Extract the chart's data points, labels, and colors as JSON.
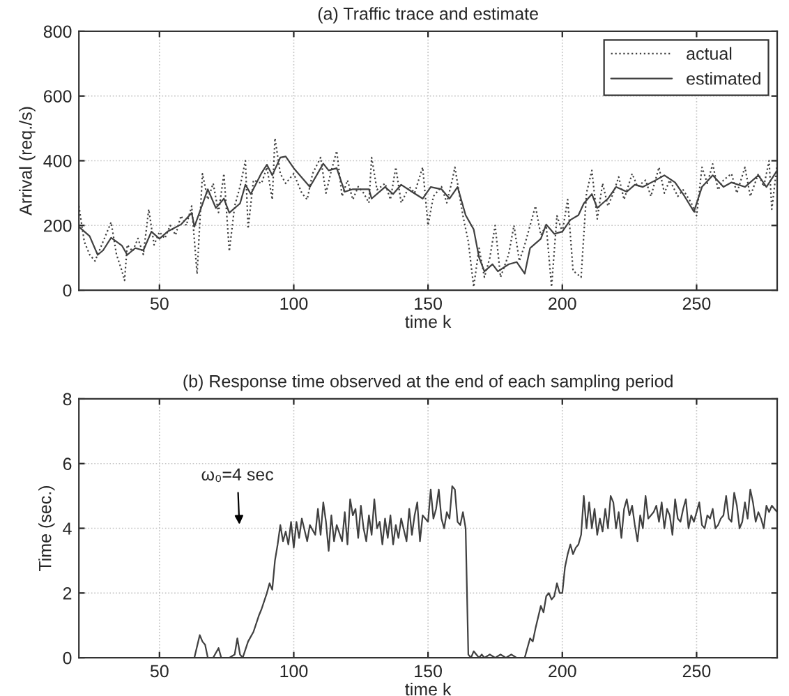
{
  "chart_data": [
    {
      "type": "line",
      "title": "(a) Traffic trace and estimate",
      "xlabel": "time k",
      "ylabel": "Arrival (req./s)",
      "xlim": [
        20,
        280
      ],
      "xticks": [
        50,
        100,
        150,
        200,
        250
      ],
      "ylim": [
        0,
        800
      ],
      "yticks": [
        0,
        200,
        400,
        600,
        800
      ],
      "grid": true,
      "legend": "top right",
      "series": [
        {
          "name": "actual",
          "color": "#404040",
          "line_style": "dotted",
          "x": [
            20,
            22,
            24,
            26,
            28,
            30,
            32,
            34,
            36,
            37,
            38,
            40,
            42,
            44,
            46,
            48,
            50,
            52,
            54,
            56,
            58,
            60,
            62,
            64,
            66,
            68,
            70,
            72,
            74,
            76,
            78,
            80,
            82,
            83,
            85,
            88,
            90,
            92,
            93,
            95,
            97,
            100,
            103,
            105,
            107,
            110,
            112,
            114,
            116,
            118,
            120,
            122,
            124,
            126,
            128,
            129,
            131,
            134,
            136,
            138,
            140,
            143,
            145,
            148,
            150,
            152,
            155,
            157,
            159,
            160,
            163,
            165,
            167,
            169,
            171,
            173,
            175,
            177,
            180,
            182,
            184,
            186,
            188,
            190,
            192,
            194,
            196,
            198,
            200,
            202,
            204,
            207,
            209,
            211,
            213,
            215,
            217,
            219,
            221,
            223,
            226,
            228,
            231,
            233,
            236,
            238,
            240,
            243,
            245,
            248,
            250,
            252,
            254,
            256,
            258,
            260,
            263,
            265,
            268,
            270,
            273,
            275,
            277,
            278,
            280
          ],
          "values": [
            260,
            150,
            110,
            90,
            130,
            170,
            210,
            110,
            60,
            30,
            140,
            120,
            160,
            110,
            250,
            140,
            180,
            160,
            200,
            170,
            230,
            200,
            260,
            50,
            360,
            280,
            330,
            240,
            360,
            120,
            260,
            320,
            400,
            190,
            340,
            330,
            380,
            280,
            470,
            360,
            330,
            360,
            300,
            280,
            360,
            410,
            300,
            370,
            430,
            290,
            340,
            280,
            320,
            300,
            270,
            410,
            310,
            330,
            280,
            380,
            270,
            320,
            300,
            380,
            200,
            290,
            320,
            270,
            340,
            380,
            230,
            150,
            10,
            130,
            40,
            100,
            200,
            40,
            110,
            200,
            90,
            140,
            200,
            260,
            170,
            200,
            10,
            230,
            180,
            280,
            60,
            40,
            300,
            370,
            220,
            330,
            260,
            300,
            350,
            280,
            360,
            320,
            340,
            290,
            380,
            300,
            340,
            290,
            310,
            270,
            230,
            380,
            330,
            390,
            310,
            340,
            360,
            300,
            380,
            290,
            360,
            320,
            400,
            250,
            390
          ]
        },
        {
          "name": "estimated",
          "color": "#404040",
          "line_style": "solid",
          "x": [
            20,
            24,
            27,
            29,
            32,
            36,
            38,
            41,
            44,
            47,
            50,
            53,
            58,
            62,
            63,
            68,
            71,
            74,
            76,
            80,
            82,
            84,
            88,
            90,
            92,
            95,
            97,
            100,
            106,
            111,
            113,
            116,
            119,
            122,
            128,
            129,
            134,
            137,
            140,
            144,
            148,
            151,
            155,
            158,
            161,
            164,
            167,
            169,
            171,
            174,
            176,
            180,
            183,
            186,
            188,
            192,
            194,
            197,
            200,
            203,
            206,
            208,
            211,
            213,
            217,
            220,
            224,
            227,
            230,
            235,
            238,
            242,
            245,
            249,
            252,
            256,
            260,
            263,
            268,
            273,
            276,
            280
          ],
          "values": [
            196,
            167,
            109,
            123,
            162,
            138,
            109,
            130,
            123,
            181,
            159,
            181,
            203,
            239,
            196,
            312,
            254,
            283,
            239,
            268,
            326,
            297,
            362,
            388,
            355,
            410,
            413,
            377,
            319,
            391,
            370,
            377,
            304,
            312,
            312,
            283,
            319,
            297,
            326,
            304,
            283,
            319,
            312,
            283,
            319,
            232,
            188,
            101,
            58,
            80,
            58,
            80,
            87,
            51,
            130,
            159,
            203,
            174,
            181,
            217,
            232,
            268,
            297,
            254,
            283,
            319,
            304,
            326,
            319,
            341,
            355,
            333,
            297,
            243,
            319,
            355,
            319,
            333,
            319,
            355,
            319,
            370
          ]
        }
      ]
    },
    {
      "type": "line",
      "title": "(b) Response time observed at the end of each sampling period",
      "xlabel": "time k",
      "ylabel": "Time (sec.)",
      "xlim": [
        20,
        280
      ],
      "xticks": [
        50,
        100,
        150,
        200,
        250
      ],
      "ylim": [
        0,
        8
      ],
      "yticks": [
        0,
        2,
        4,
        6,
        8
      ],
      "grid": true,
      "annotations": [
        "ω₀=4 sec"
      ],
      "series": [
        {
          "color": "#404040",
          "line_style": "solid",
          "x": [
            20,
            63,
            65,
            66,
            67,
            68,
            70,
            72,
            73,
            76,
            78,
            79,
            80,
            81,
            83,
            85,
            87,
            88,
            90,
            91,
            92,
            93,
            94,
            95,
            96,
            97,
            98,
            99,
            100,
            101,
            102,
            103,
            105,
            106,
            108,
            109,
            110,
            111,
            112,
            113,
            114,
            115,
            116,
            118,
            119,
            120,
            121,
            122,
            123,
            124,
            125,
            126,
            127,
            128,
            129,
            130,
            131,
            132,
            133,
            134,
            135,
            136,
            137,
            138,
            139,
            140,
            142,
            143,
            144,
            145,
            146,
            147,
            148,
            150,
            151,
            152,
            153,
            154,
            155,
            156,
            157,
            158,
            159,
            160,
            161,
            162,
            163,
            164,
            165,
            166,
            167,
            168,
            169,
            170,
            171,
            173,
            175,
            177,
            179,
            181,
            183,
            186,
            188,
            189,
            190,
            192,
            193,
            194,
            195,
            196,
            197,
            198,
            199,
            200,
            201,
            202,
            203,
            204,
            205,
            206,
            207,
            208,
            209,
            210,
            211,
            212,
            213,
            214,
            215,
            216,
            217,
            218,
            219,
            220,
            221,
            222,
            223,
            224,
            225,
            226,
            227,
            228,
            229,
            230,
            231,
            232,
            233,
            234,
            235,
            236,
            237,
            238,
            239,
            240,
            241,
            242,
            243,
            244,
            245,
            246,
            247,
            248,
            249,
            250,
            251,
            252,
            253,
            254,
            255,
            256,
            257,
            258,
            259,
            260,
            261,
            262,
            263,
            264,
            265,
            266,
            267,
            268,
            269,
            270,
            271,
            272,
            273,
            274,
            275,
            276,
            277,
            278,
            279,
            280
          ],
          "values": [
            0,
            0,
            0.7,
            0.5,
            0.4,
            0,
            0,
            0.3,
            0,
            0,
            0.1,
            0.6,
            0.1,
            0,
            0.5,
            0.8,
            1.3,
            1.5,
            2.0,
            2.3,
            2.1,
            3.0,
            3.5,
            4.1,
            3.6,
            3.9,
            3.5,
            4.2,
            3.4,
            4.2,
            3.7,
            4.3,
            3.6,
            4.1,
            3.8,
            4.6,
            3.8,
            4.8,
            4.2,
            3.3,
            4.4,
            3.6,
            4.1,
            3.6,
            4.5,
            3.5,
            4.9,
            4.4,
            4.6,
            3.7,
            4.7,
            4.0,
            3.6,
            4.4,
            3.8,
            4.9,
            4.0,
            4.2,
            3.5,
            4.3,
            3.7,
            4.4,
            3.5,
            4.1,
            3.7,
            4.3,
            3.6,
            4.6,
            3.8,
            4.4,
            4.8,
            3.6,
            4.4,
            4.2,
            5.2,
            4.3,
            4.6,
            5.2,
            4.3,
            4.0,
            4.5,
            4.3,
            5.3,
            5.2,
            4.2,
            4.1,
            4.5,
            4.0,
            0.1,
            0,
            0.2,
            0.1,
            0,
            0.1,
            0,
            0.1,
            0,
            0.1,
            0,
            0.1,
            0,
            0,
            0.6,
            0.5,
            0.9,
            1.6,
            1.4,
            1.9,
            2.0,
            1.8,
            1.9,
            2.3,
            2.0,
            2.0,
            2.8,
            3.2,
            3.5,
            3.2,
            3.4,
            3.5,
            3.8,
            5.0,
            4.0,
            4.8,
            4.0,
            4.6,
            3.8,
            4.3,
            3.9,
            4.6,
            4.0,
            5.0,
            4.8,
            4.0,
            4.5,
            3.7,
            4.6,
            4.9,
            4.4,
            4.7,
            4.1,
            3.6,
            4.4,
            4.0,
            5.0,
            4.3,
            4.4,
            4.5,
            4.7,
            4.2,
            4.8,
            4.0,
            4.6,
            4.4,
            3.8,
            4.9,
            4.3,
            4.2,
            4.6,
            4.9,
            4.0,
            4.4,
            4.2,
            4.5,
            4.8,
            4.1,
            4.0,
            4.4,
            4.3,
            4.6,
            4.0,
            4.1,
            4.3,
            4.4,
            5.0,
            4.3,
            4.2,
            5.1,
            4.7,
            4.0,
            4.2,
            4.8,
            4.3,
            5.2,
            4.8,
            4.2,
            4.5,
            4.3,
            4.0,
            4.7,
            4.5,
            4.7,
            4.6,
            4.5
          ]
        }
      ]
    }
  ]
}
